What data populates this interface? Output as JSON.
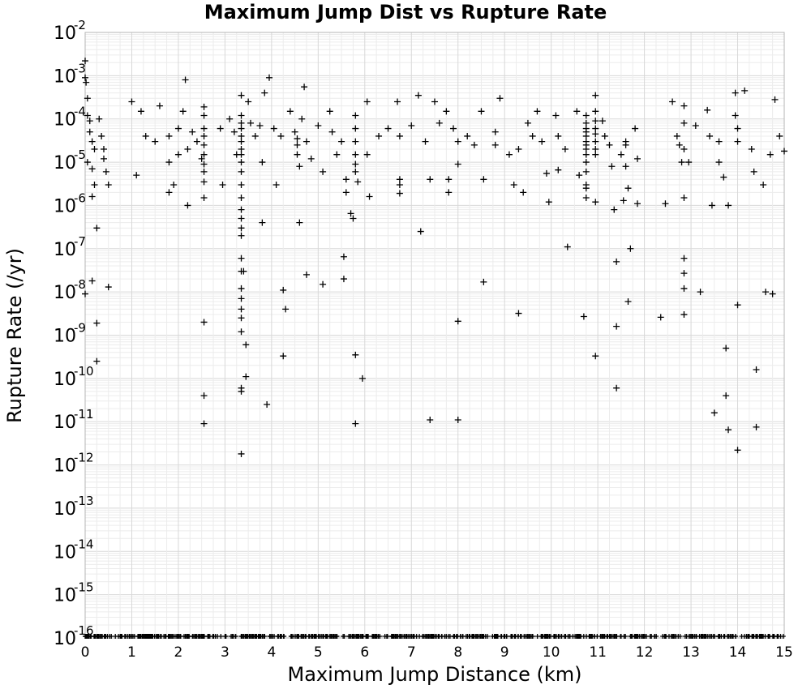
{
  "chart_data": {
    "type": "scatter",
    "title": "Maximum Jump Dist vs Rupture Rate",
    "xlabel": "Maximum Jump Distance (km)",
    "ylabel": "Rupture Rate (/yr)",
    "xlim": [
      0,
      15
    ],
    "ylim": [
      1e-16,
      0.01
    ],
    "y_scale": "log",
    "x_ticks": [
      "0",
      "1",
      "2",
      "3",
      "4",
      "5",
      "6",
      "7",
      "8",
      "9",
      "10",
      "11",
      "12",
      "13",
      "14",
      "15"
    ],
    "y_tick_exponents": [
      "-2",
      "-3",
      "-4",
      "-5",
      "-6",
      "-7",
      "-8",
      "-9",
      "-10",
      "-11",
      "-12",
      "-13",
      "-14",
      "-15",
      "-16"
    ],
    "y_tick_base": "10",
    "grid": true,
    "marker": "+",
    "color": "#000000",
    "series": [
      {
        "values": [
          [
            0.0,
            0.0022
          ],
          [
            0.0,
            0.0009
          ],
          [
            0.02,
            0.0007
          ],
          [
            0.05,
            0.0003
          ],
          [
            0.05,
            0.00012
          ],
          [
            0.1,
            9e-05
          ],
          [
            0.1,
            5e-05
          ],
          [
            0.15,
            3e-05
          ],
          [
            0.2,
            2e-05
          ],
          [
            0.05,
            1e-05
          ],
          [
            0.15,
            7e-06
          ],
          [
            0.2,
            3e-06
          ],
          [
            0.3,
            0.0001
          ],
          [
            0.35,
            4e-05
          ],
          [
            0.4,
            2e-05
          ],
          [
            0.4,
            1.2e-05
          ],
          [
            0.45,
            6e-06
          ],
          [
            0.5,
            3e-06
          ],
          [
            0.15,
            1.6e-06
          ],
          [
            0.25,
            3e-07
          ],
          [
            0.15,
            1.8e-08
          ],
          [
            0.5,
            1.3e-08
          ],
          [
            0.0,
            9e-09
          ],
          [
            0.25,
            1.9e-09
          ],
          [
            0.25,
            2.5e-10
          ],
          [
            1.0,
            0.00025
          ],
          [
            1.2,
            0.00015
          ],
          [
            1.1,
            5e-06
          ],
          [
            1.3,
            4e-05
          ],
          [
            1.5,
            3e-05
          ],
          [
            1.6,
            0.0002
          ],
          [
            1.8,
            4e-05
          ],
          [
            1.8,
            1e-05
          ],
          [
            2.0,
            6e-05
          ],
          [
            2.0,
            1.5e-05
          ],
          [
            1.8,
            2e-06
          ],
          [
            1.9,
            3e-06
          ],
          [
            2.15,
            0.0008
          ],
          [
            2.1,
            0.00015
          ],
          [
            2.3,
            5e-05
          ],
          [
            2.2,
            2e-05
          ],
          [
            2.2,
            1e-06
          ],
          [
            2.4,
            3e-05
          ],
          [
            2.5,
            1.2e-05
          ],
          [
            2.55,
            0.00019
          ],
          [
            2.55,
            0.00012
          ],
          [
            2.55,
            6e-05
          ],
          [
            2.55,
            4e-05
          ],
          [
            2.55,
            2.5e-05
          ],
          [
            2.55,
            1.5e-05
          ],
          [
            2.55,
            9e-06
          ],
          [
            2.55,
            6e-06
          ],
          [
            2.55,
            3.5e-06
          ],
          [
            2.55,
            1.5e-06
          ],
          [
            2.55,
            2e-09
          ],
          [
            2.55,
            4e-11
          ],
          [
            2.55,
            9e-12
          ],
          [
            2.9,
            6e-05
          ],
          [
            2.95,
            3e-06
          ],
          [
            3.1,
            0.0001
          ],
          [
            3.2,
            5e-05
          ],
          [
            3.25,
            1.5e-05
          ],
          [
            3.35,
            0.00035
          ],
          [
            3.35,
            0.00012
          ],
          [
            3.35,
            8e-05
          ],
          [
            3.35,
            6e-05
          ],
          [
            3.35,
            4e-05
          ],
          [
            3.35,
            3e-05
          ],
          [
            3.35,
            2e-05
          ],
          [
            3.35,
            1.5e-05
          ],
          [
            3.35,
            1e-05
          ],
          [
            3.35,
            6e-06
          ],
          [
            3.35,
            3e-06
          ],
          [
            3.35,
            1.5e-06
          ],
          [
            3.35,
            8e-07
          ],
          [
            3.35,
            5e-07
          ],
          [
            3.35,
            3e-07
          ],
          [
            3.35,
            2e-07
          ],
          [
            3.35,
            6e-08
          ],
          [
            3.35,
            3e-08
          ],
          [
            3.35,
            1.2e-08
          ],
          [
            3.35,
            7e-09
          ],
          [
            3.35,
            4e-09
          ],
          [
            3.35,
            2.5e-09
          ],
          [
            3.35,
            1.2e-09
          ],
          [
            3.35,
            6e-11
          ],
          [
            3.35,
            5e-11
          ],
          [
            3.35,
            1.8e-12
          ],
          [
            3.45,
            1.1e-10
          ],
          [
            3.45,
            6e-10
          ],
          [
            3.4,
            3e-08
          ],
          [
            3.5,
            0.00025
          ],
          [
            3.55,
            8e-05
          ],
          [
            3.65,
            4e-05
          ],
          [
            3.75,
            7e-05
          ],
          [
            3.8,
            1e-05
          ],
          [
            3.85,
            0.0004
          ],
          [
            3.8,
            4e-07
          ],
          [
            3.95,
            0.0009
          ],
          [
            3.9,
            2.5e-11
          ],
          [
            4.05,
            6e-05
          ],
          [
            4.1,
            3e-06
          ],
          [
            4.2,
            4e-05
          ],
          [
            4.25,
            3.3e-10
          ],
          [
            4.25,
            1.1e-08
          ],
          [
            4.3,
            4e-09
          ],
          [
            4.4,
            0.00015
          ],
          [
            4.5,
            5e-05
          ],
          [
            4.55,
            3.5e-05
          ],
          [
            4.55,
            2.5e-05
          ],
          [
            4.55,
            1.5e-05
          ],
          [
            4.6,
            8e-06
          ],
          [
            4.65,
            0.0001
          ],
          [
            4.6,
            4e-07
          ],
          [
            4.7,
            0.00055
          ],
          [
            4.75,
            3e-05
          ],
          [
            4.75,
            2.5e-08
          ],
          [
            4.85,
            1.2e-05
          ],
          [
            5.0,
            7e-05
          ],
          [
            5.1,
            6e-06
          ],
          [
            5.1,
            1.5e-08
          ],
          [
            5.25,
            0.00015
          ],
          [
            5.3,
            5e-05
          ],
          [
            5.4,
            1.5e-05
          ],
          [
            5.5,
            3e-05
          ],
          [
            5.55,
            6.5e-08
          ],
          [
            5.6,
            4e-06
          ],
          [
            5.6,
            2e-06
          ],
          [
            5.55,
            2e-08
          ],
          [
            5.7,
            6.5e-07
          ],
          [
            5.75,
            5e-07
          ],
          [
            5.8,
            0.00012
          ],
          [
            5.8,
            6e-05
          ],
          [
            5.8,
            3e-05
          ],
          [
            5.8,
            1.5e-05
          ],
          [
            5.8,
            9e-06
          ],
          [
            5.8,
            6e-06
          ],
          [
            5.85,
            3.5e-06
          ],
          [
            5.8,
            3.5e-10
          ],
          [
            5.8,
            9e-12
          ],
          [
            5.95,
            1e-10
          ],
          [
            6.05,
            0.00025
          ],
          [
            6.05,
            1.5e-05
          ],
          [
            6.1,
            1.6e-06
          ],
          [
            6.3,
            4e-05
          ],
          [
            6.5,
            6e-05
          ],
          [
            6.7,
            0.00025
          ],
          [
            6.75,
            4e-05
          ],
          [
            6.75,
            4e-06
          ],
          [
            6.75,
            3e-06
          ],
          [
            6.75,
            1.9e-06
          ],
          [
            7.0,
            7e-05
          ],
          [
            7.15,
            0.00035
          ],
          [
            7.2,
            2.5e-07
          ],
          [
            7.3,
            3e-05
          ],
          [
            7.4,
            4e-06
          ],
          [
            7.4,
            1.1e-11
          ],
          [
            7.5,
            0.00025
          ],
          [
            7.6,
            8e-05
          ],
          [
            7.75,
            0.00015
          ],
          [
            7.8,
            4e-06
          ],
          [
            7.8,
            2e-06
          ],
          [
            7.9,
            6e-05
          ],
          [
            8.0,
            3e-05
          ],
          [
            8.0,
            9e-06
          ],
          [
            8.0,
            2.1e-09
          ],
          [
            8.0,
            1.1e-11
          ],
          [
            8.2,
            4e-05
          ],
          [
            8.35,
            2.5e-05
          ],
          [
            8.5,
            0.00015
          ],
          [
            8.55,
            4e-06
          ],
          [
            8.55,
            1.7e-08
          ],
          [
            8.8,
            5e-05
          ],
          [
            8.8,
            2.5e-05
          ],
          [
            8.9,
            0.0003
          ],
          [
            9.1,
            1.5e-05
          ],
          [
            9.2,
            3e-06
          ],
          [
            9.3,
            2e-05
          ],
          [
            9.3,
            3.2e-09
          ],
          [
            9.4,
            2e-06
          ],
          [
            9.5,
            8e-05
          ],
          [
            9.6,
            4e-05
          ],
          [
            9.7,
            0.00015
          ],
          [
            9.8,
            3e-05
          ],
          [
            9.9,
            5.5e-06
          ],
          [
            9.95,
            1.2e-06
          ],
          [
            10.1,
            0.00012
          ],
          [
            10.15,
            4e-05
          ],
          [
            10.15,
            6.6e-06
          ],
          [
            10.3,
            2e-05
          ],
          [
            10.35,
            1.1e-07
          ],
          [
            10.55,
            0.00015
          ],
          [
            10.6,
            5e-06
          ],
          [
            10.7,
            2.7e-09
          ],
          [
            10.75,
            0.00012
          ],
          [
            10.75,
            8e-05
          ],
          [
            10.75,
            6e-05
          ],
          [
            10.75,
            5e-05
          ],
          [
            10.75,
            4e-05
          ],
          [
            10.75,
            3e-05
          ],
          [
            10.75,
            2.5e-05
          ],
          [
            10.75,
            2e-05
          ],
          [
            10.75,
            1.5e-05
          ],
          [
            10.75,
            1e-05
          ],
          [
            10.75,
            6e-06
          ],
          [
            10.75,
            3e-06
          ],
          [
            10.75,
            2.5e-06
          ],
          [
            10.75,
            1.5e-06
          ],
          [
            10.95,
            0.00035
          ],
          [
            10.95,
            0.00015
          ],
          [
            10.95,
            9e-05
          ],
          [
            10.95,
            6e-05
          ],
          [
            10.95,
            4.5e-05
          ],
          [
            10.95,
            3e-05
          ],
          [
            10.95,
            2e-05
          ],
          [
            10.95,
            1.5e-05
          ],
          [
            10.95,
            1.2e-06
          ],
          [
            10.95,
            3.3e-10
          ],
          [
            11.1,
            9e-05
          ],
          [
            11.15,
            4e-05
          ],
          [
            11.25,
            2.5e-05
          ],
          [
            11.3,
            8e-06
          ],
          [
            11.35,
            8e-07
          ],
          [
            11.4,
            5e-08
          ],
          [
            11.4,
            1.6e-09
          ],
          [
            11.4,
            6e-11
          ],
          [
            11.5,
            1.5e-05
          ],
          [
            11.55,
            1.3e-06
          ],
          [
            11.6,
            3e-05
          ],
          [
            11.6,
            2.5e-05
          ],
          [
            11.6,
            8e-06
          ],
          [
            11.65,
            2.5e-06
          ],
          [
            11.65,
            6e-09
          ],
          [
            11.7,
            1e-07
          ],
          [
            11.8,
            6e-05
          ],
          [
            11.85,
            1.2e-05
          ],
          [
            11.85,
            1.1e-06
          ],
          [
            12.35,
            2.6e-09
          ],
          [
            12.45,
            1.1e-06
          ],
          [
            12.6,
            0.00025
          ],
          [
            12.7,
            4e-05
          ],
          [
            12.75,
            2.5e-05
          ],
          [
            12.8,
            1e-05
          ],
          [
            12.85,
            0.0002
          ],
          [
            12.85,
            8e-05
          ],
          [
            12.85,
            2e-05
          ],
          [
            12.85,
            1.5e-06
          ],
          [
            12.85,
            6e-08
          ],
          [
            12.85,
            2.7e-08
          ],
          [
            12.85,
            1.2e-08
          ],
          [
            12.85,
            3e-09
          ],
          [
            12.95,
            1e-05
          ],
          [
            13.1,
            7e-05
          ],
          [
            13.2,
            1e-08
          ],
          [
            13.35,
            0.00016
          ],
          [
            13.4,
            4e-05
          ],
          [
            13.45,
            1e-06
          ],
          [
            13.5,
            1.6e-11
          ],
          [
            13.6,
            3e-05
          ],
          [
            13.6,
            1e-05
          ],
          [
            13.7,
            4.5e-06
          ],
          [
            13.75,
            5e-10
          ],
          [
            13.75,
            4e-11
          ],
          [
            13.8,
            6.5e-12
          ],
          [
            13.8,
            1e-06
          ],
          [
            13.95,
            0.0004
          ],
          [
            13.95,
            0.00012
          ],
          [
            14.0,
            6e-05
          ],
          [
            14.0,
            3e-05
          ],
          [
            14.0,
            5e-09
          ],
          [
            14.0,
            2.2e-12
          ],
          [
            14.15,
            0.00045
          ],
          [
            14.3,
            2e-05
          ],
          [
            14.35,
            6e-06
          ],
          [
            14.4,
            1.6e-10
          ],
          [
            14.4,
            7.5e-12
          ],
          [
            14.55,
            3e-06
          ],
          [
            14.6,
            1e-08
          ],
          [
            14.7,
            1.5e-05
          ],
          [
            14.75,
            9e-09
          ],
          [
            14.8,
            0.00028
          ],
          [
            14.9,
            4e-05
          ],
          [
            15.0,
            1.8e-05
          ]
        ],
        "zero_rate_band": {
          "x_range": [
            0,
            15
          ],
          "y": 1e-16,
          "count": 600
        }
      }
    ]
  }
}
